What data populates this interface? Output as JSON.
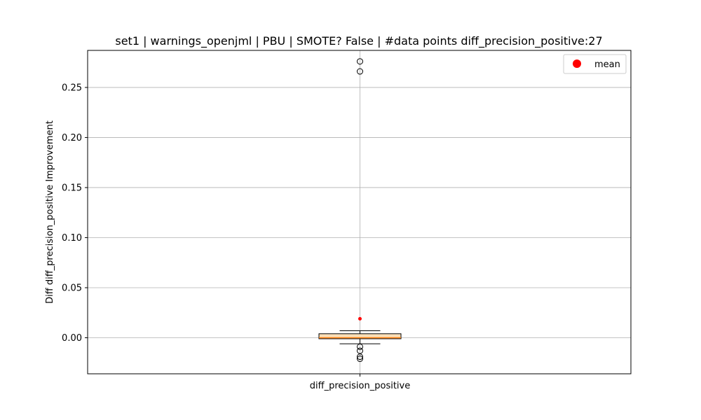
{
  "chart_data": {
    "type": "box",
    "title": "set1 | warnings_openjml | PBU | SMOTE? False | #data points diff_precision_positive:27",
    "xlabel": "",
    "ylabel": "Diff diff_precision_positive Improvement",
    "categories": [
      "diff_precision_positive"
    ],
    "ylim": [
      -0.036,
      0.287
    ],
    "yticks": [
      0.0,
      0.05,
      0.1,
      0.15,
      0.2,
      0.25
    ],
    "ytick_labels": [
      "0.00",
      "0.05",
      "0.10",
      "0.15",
      "0.20",
      "0.25"
    ],
    "grid": true,
    "legend": {
      "placement": "top-right",
      "entries": [
        {
          "label": "mean",
          "color": "#ff0000"
        }
      ]
    },
    "box": {
      "whisker_low": -0.006,
      "q1": -0.001,
      "median": 0.0,
      "q3": 0.004,
      "whisker_high": 0.007,
      "mean": 0.019,
      "outliers": [
        0.276,
        0.266,
        -0.009,
        -0.013,
        -0.019,
        -0.021
      ]
    },
    "colors": {
      "box_fill": "#fde0b8",
      "median": "#ff7f0e",
      "mean": "#ff0000",
      "grid": "#b0b0b0"
    }
  }
}
